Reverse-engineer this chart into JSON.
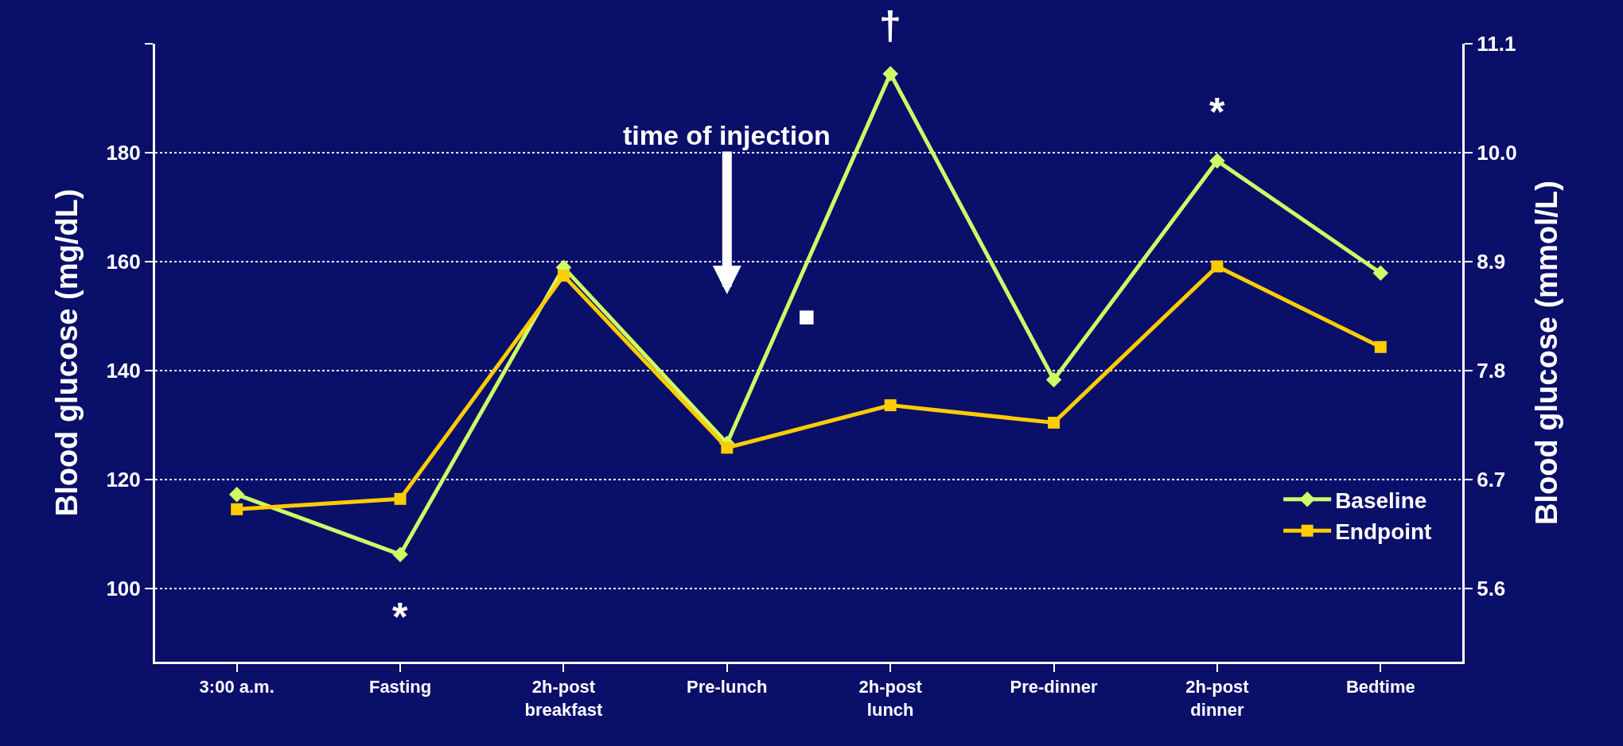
{
  "chart_data": {
    "type": "line",
    "categories": [
      "3:00 a.m.",
      "Fasting",
      "2h-post\nbreakfast",
      "Pre-lunch",
      "2h-post\nlunch",
      "Pre-dinner",
      "2h-post\ndinner",
      "Bedtime"
    ],
    "series": [
      {
        "name": "Baseline",
        "color": "#ccff66",
        "marker": "diamond",
        "values": [
          117.2,
          106.2,
          158.9,
          126.6,
          194.5,
          138.3,
          178.5,
          157.9
        ]
      },
      {
        "name": "Endpoint",
        "color": "#ffcc00",
        "marker": "square",
        "values": [
          114.5,
          116.4,
          157.4,
          125.8,
          133.6,
          130.4,
          159.1,
          144.3
        ]
      }
    ],
    "ylabel": "Blood glucose (mg/dL)",
    "y2label": "Blood glucose (mmol/L)",
    "ylim": [
      86.5,
      200
    ],
    "yticks": [
      100,
      120,
      140,
      160,
      180,
      {
        "value": 200,
        "label": null
      }
    ],
    "y2lim": [
      4.86,
      11.1
    ],
    "y2ticks": [
      5.6,
      6.7,
      7.8,
      8.9,
      {
        "value": 10,
        "label": "10.0"
      },
      11.1
    ],
    "grid": "y",
    "legend": "bottom right",
    "line_style": "solid",
    "annotations": [
      "time of injection",
      "*",
      "†",
      "*",
      "■"
    ]
  }
}
